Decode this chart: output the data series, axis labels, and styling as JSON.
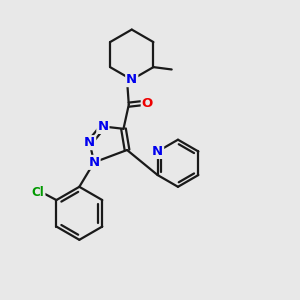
{
  "bg_color": "#e8e8e8",
  "bond_color": "#1a1a1a",
  "bond_width": 1.6,
  "atom_colors": {
    "N": "#0000ee",
    "O": "#ee0000",
    "Cl": "#009900",
    "C": "#1a1a1a"
  },
  "font_size_atom": 9.5,
  "font_size_cl": 8.5,
  "dbl_sep": 0.09
}
